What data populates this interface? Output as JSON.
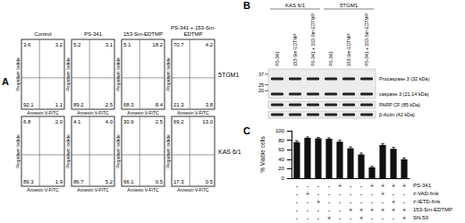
{
  "panel_a": {
    "label": "A",
    "columns": [
      "Control",
      "PS-341",
      "153-Sm-EDTMP",
      "PS-341 + 153-Sm-EDTMP"
    ],
    "x_label": "Annexin V-FITC",
    "y_label": "Propidium Iodide",
    "rows": [
      {
        "name": "5TGM1",
        "plots": [
          {
            "ul": "3.6",
            "ur": "3.2",
            "ll": "92.1",
            "lr": "1.1"
          },
          {
            "ul": "5.2",
            "ur": "3.1",
            "ll": "89.2",
            "lr": "2.5"
          },
          {
            "ul": "5.1",
            "ur": "18.2",
            "ll": "68.3",
            "lr": "8.4"
          },
          {
            "ul": "70.7",
            "ur": "4.2",
            "ll": "21.3",
            "lr": "3.8"
          }
        ]
      },
      {
        "name": "KAS 6/1",
        "plots": [
          {
            "ul": "6.8",
            "ur": "2.0",
            "ll": "89.3",
            "lr": "1.9"
          },
          {
            "ul": "4.1",
            "ur": "4.0",
            "ll": "86.7",
            "lr": "5.2"
          },
          {
            "ul": "30.9",
            "ur": "2.5",
            "ll": "66.1",
            "lr": "0.5"
          },
          {
            "ul": "69.2",
            "ur": "13.0",
            "ll": "17.3",
            "lr": "0.5"
          }
        ]
      }
    ]
  },
  "panel_b": {
    "label": "B",
    "groups": [
      {
        "name": "KAS 6/1",
        "lanes": [
          "PS-341",
          "153-Sm-EDTMP",
          "PS-341 + 153-Sm-EDTMP"
        ]
      },
      {
        "name": "5TGM1",
        "lanes": [
          "PS-341",
          "153-Sm-EDTMP",
          "PS-341 + 153-Sm-EDTMP"
        ]
      }
    ],
    "markers": [
      37,
      25,
      20
    ],
    "blots": [
      {
        "bands": [
          "Procaspase 3 (32 kDa)",
          "caspase 3 (21,14 kDa)"
        ]
      },
      {
        "bands": [
          "PARP CF (85 kDa)"
        ]
      },
      {
        "bands": [
          "β-Actin (42 kDa)"
        ]
      }
    ]
  },
  "chart_data": {
    "label": "C",
    "type": "bar",
    "y_label": "% Viable cells",
    "categories": [
      null,
      null,
      null,
      null,
      null,
      null,
      null,
      null,
      null,
      null,
      null
    ],
    "values": [
      76,
      85,
      84,
      83,
      77,
      63,
      50,
      23,
      70,
      62,
      40
    ],
    "errors": [
      3,
      2,
      2,
      2,
      3,
      3,
      3,
      2,
      3,
      3,
      3
    ],
    "color": "#111111",
    "ylim": [
      0,
      100
    ],
    "yticks": [
      0,
      20,
      40,
      60,
      80,
      100
    ],
    "grid": false,
    "tick_labels": "y",
    "conditions": [
      {
        "name": "PS-341",
        "marks": [
          "-",
          "-",
          "-",
          "-",
          "+",
          "-",
          "-",
          "+",
          "+",
          "+",
          "+"
        ]
      },
      {
        "name": "z-VAD-fmk",
        "marks": [
          "-",
          "+",
          "-",
          "-",
          "-",
          "-",
          "-",
          "-",
          "+",
          "-",
          "-"
        ]
      },
      {
        "name": "z-IETD-fmk",
        "marks": [
          "-",
          "-",
          "+",
          "-",
          "-",
          "-",
          "-",
          "-",
          "-",
          "+",
          "-"
        ]
      },
      {
        "name": "153-Sm-EDTMP",
        "marks": [
          "-",
          "-",
          "-",
          "-",
          "-",
          "+",
          "+",
          "+",
          "+",
          "+",
          "+"
        ]
      },
      {
        "name": "SN-50",
        "marks": [
          "-",
          "-",
          "-",
          "+",
          "-",
          "-",
          "+",
          "-",
          "-",
          "-",
          "+"
        ]
      }
    ]
  }
}
